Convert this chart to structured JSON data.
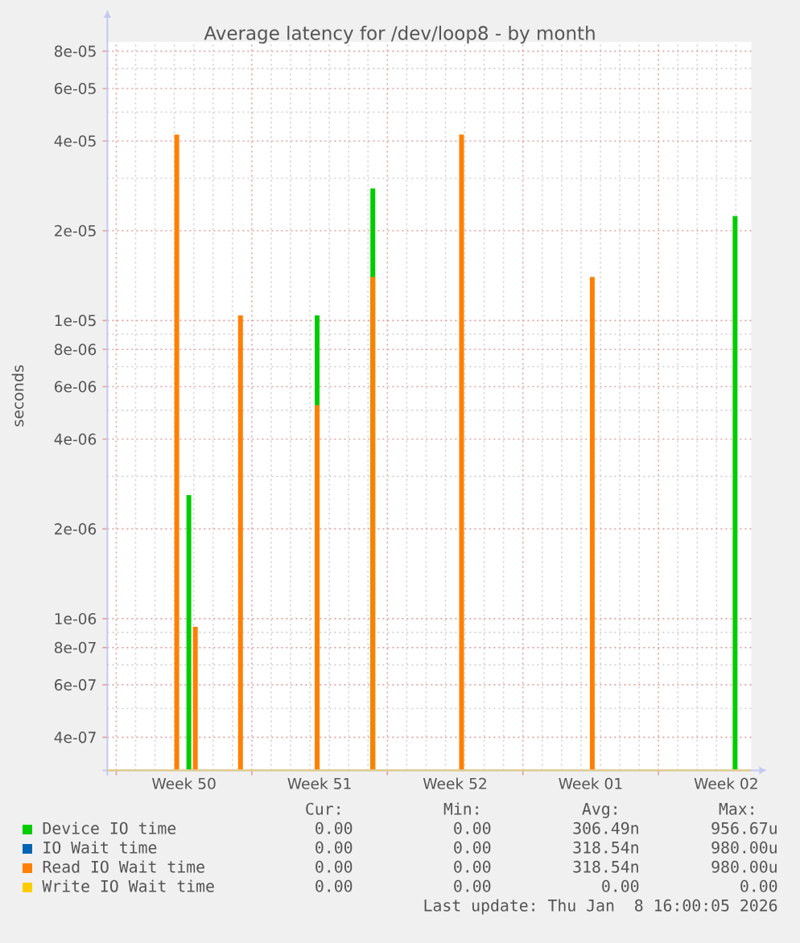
{
  "chart_data": {
    "type": "bar",
    "title": "Average latency for /dev/loop8 - by month",
    "ylabel": "seconds",
    "x": [
      "2025-12-11T03:00",
      "2025-12-11T18:00",
      "2025-12-12T02:00",
      "2025-12-14T10:00",
      "2025-12-18T09:00",
      "2025-12-21T06:00",
      "2025-12-25T20:00",
      "2026-01-01T14:00",
      "2026-01-08T23:00"
    ],
    "series": [
      {
        "name": "Device IO time",
        "color": "#00cc00",
        "values": [
          null,
          2.6e-06,
          null,
          null,
          1.04e-05,
          2.77e-05,
          null,
          null,
          2.24e-05
        ]
      },
      {
        "name": "IO Wait time",
        "color": "#0066b3",
        "values": [
          null,
          null,
          null,
          null,
          null,
          null,
          null,
          null,
          null
        ]
      },
      {
        "name": "Read IO Wait time",
        "color": "#ff8000",
        "values": [
          4.2e-05,
          null,
          9.4e-07,
          1.04e-05,
          5.2e-06,
          1.4e-05,
          4.2e-05,
          1.4e-05,
          null
        ]
      },
      {
        "name": "Write IO Wait time",
        "color": "#ffcc00",
        "values": [
          null,
          null,
          null,
          null,
          null,
          null,
          null,
          null,
          null
        ]
      }
    ],
    "xlim": [
      "2025-12-07T13:00",
      "2026-01-09T19:00"
    ],
    "xticks": [
      {
        "value": "2025-12-08",
        "label": null
      },
      {
        "value": "2025-12-11T12:00",
        "label": "Week 50"
      },
      {
        "value": "2025-12-15",
        "label": null
      },
      {
        "value": "2025-12-18T12:00",
        "label": "Week 51"
      },
      {
        "value": "2025-12-22",
        "label": null
      },
      {
        "value": "2025-12-25T12:00",
        "label": "Week 52"
      },
      {
        "value": "2025-12-29",
        "label": null
      },
      {
        "value": "2026-01-01T12:00",
        "label": "Week 01"
      },
      {
        "value": "2026-01-05",
        "label": null
      },
      {
        "value": "2026-01-08T12:00",
        "label": "Week 02"
      }
    ],
    "ylim": [
      3.1e-07,
      8.6e-05
    ],
    "yticks": [
      4e-07,
      6e-07,
      8e-07,
      1e-06,
      2e-06,
      4e-06,
      6e-06,
      8e-06,
      1e-05,
      2e-05,
      4e-05,
      6e-05,
      8e-05
    ],
    "log": true,
    "grid": true,
    "legend": "bottom",
    "annotations": [
      "Cur:",
      "Min:",
      "Avg:",
      "Max:",
      "0.00",
      "0.00",
      "306.49n",
      "956.67u",
      "0.00",
      "0.00",
      "318.54n",
      "980.00u",
      "0.00",
      "0.00",
      "318.54n",
      "980.00u",
      "0.00",
      "0.00",
      "0.00",
      "0.00",
      "Last update: Thu Jan  8 16:00:05 2026"
    ]
  }
}
